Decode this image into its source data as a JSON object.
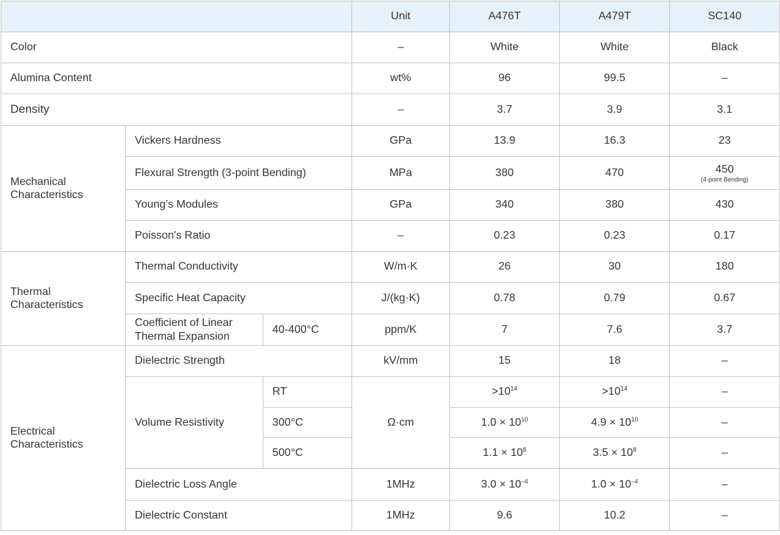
{
  "header": {
    "blank": "",
    "unit": "Unit",
    "a476t": "A476T",
    "a479t": "A479T",
    "sc140": "SC140"
  },
  "rows": {
    "color": {
      "label": "Color",
      "unit": "–",
      "a476t": "White",
      "a479t": "White",
      "sc140": "Black"
    },
    "alumina": {
      "label": "Alumina Content",
      "unit": "wt%",
      "a476t": "96",
      "a479t": "99.5",
      "sc140": "–"
    },
    "density": {
      "label": "Density",
      "unit": "–",
      "a476t": "3.7",
      "a479t": "3.9",
      "sc140": "3.1"
    },
    "mechanical": {
      "group": "Mechanical Characteristics",
      "vickers": {
        "label": "Vickers Hardness",
        "unit": "GPa",
        "a476t": "13.9",
        "a479t": "16.3",
        "sc140": "23"
      },
      "flexural": {
        "label": "Flexural Strength (3-point Bending)",
        "unit": "MPa",
        "a476t": "380",
        "a479t": "470",
        "sc140": "450",
        "sc140_note": "(4-point Bending)"
      },
      "youngs": {
        "label": "Young’s Modules",
        "unit": "GPa",
        "a476t": "340",
        "a479t": "380",
        "sc140": "430"
      },
      "poisson": {
        "label": "Poisson's Ratio",
        "unit": "–",
        "a476t": "0.23",
        "a479t": "0.23",
        "sc140": "0.17"
      }
    },
    "thermal": {
      "group": "Thermal Characteristics",
      "conductivity": {
        "label": "Thermal Conductivity",
        "unit": "W/m·K",
        "a476t": "26",
        "a479t": "30",
        "sc140": "180"
      },
      "heat_capacity": {
        "label": "Specific Heat Capacity",
        "unit": "J/(kg·K)",
        "a476t": "0.78",
        "a479t": "0.79",
        "sc140": "0.67"
      },
      "expansion": {
        "label": "Coefficient of Linear Thermal Expansion",
        "range": "40-400°C",
        "unit": "ppm/K",
        "a476t": "7",
        "a479t": "7.6",
        "sc140": "3.7"
      }
    },
    "electrical": {
      "group": "Electrical Characteristics",
      "dielectric_strength": {
        "label": "Dielectric Strength",
        "unit": "kV/mm",
        "a476t": "15",
        "a479t": "18",
        "sc140": "–"
      },
      "volume_resistivity": {
        "label": "Volume Resistivity",
        "unit": "Ω·cm",
        "rt": {
          "temp": "RT",
          "a476t_base": ">10",
          "a476t_exp": "14",
          "a479t_base": ">10",
          "a479t_exp": "14",
          "sc140": "–"
        },
        "t300": {
          "temp": "300°C",
          "a476t_base": "1.0 × 10",
          "a476t_exp": "10",
          "a479t_base": "4.9 × 10",
          "a479t_exp": "10",
          "sc140": "–"
        },
        "t500": {
          "temp": "500°C",
          "a476t_base": "1.1 × 10",
          "a476t_exp": "8",
          "a479t_base": "3.5 × 10",
          "a479t_exp": "8",
          "sc140": "–"
        }
      },
      "loss_angle": {
        "label": "Dielectric Loss Angle",
        "unit": "1MHz",
        "a476t_base": "3.0 × 10",
        "a476t_exp": "–4",
        "a479t_base": "1.0 × 10",
        "a479t_exp": "–4",
        "sc140": "–"
      },
      "constant": {
        "label": "Dielectric Constant",
        "unit": "1MHz",
        "a476t": "9.6",
        "a479t": "10.2",
        "sc140": "–"
      }
    }
  }
}
